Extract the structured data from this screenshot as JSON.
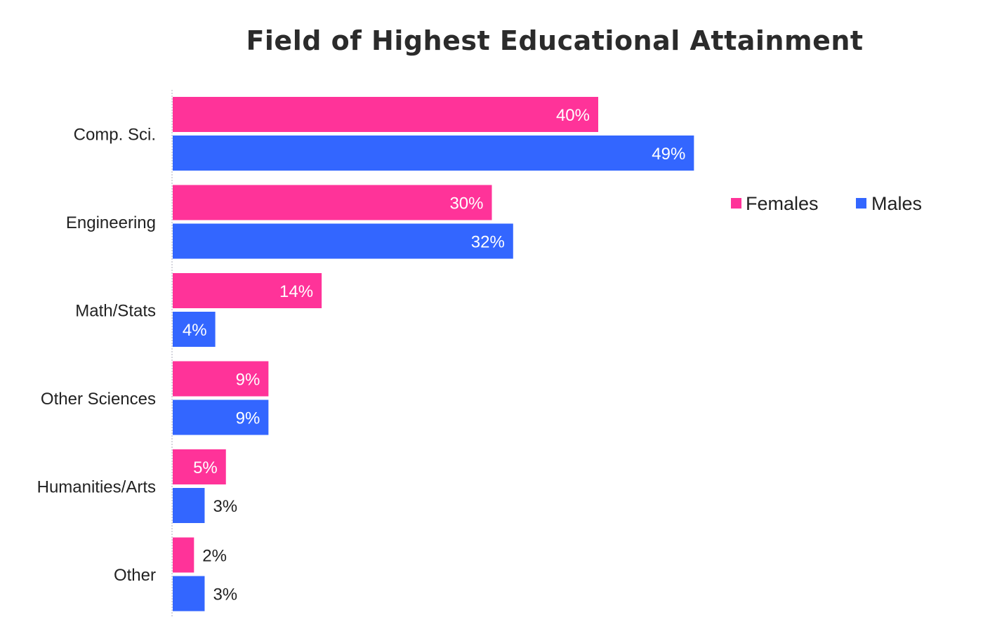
{
  "chart_data": {
    "type": "bar",
    "orientation": "horizontal",
    "title": "Field of Highest Educational Attainment",
    "categories": [
      "Comp. Sci.",
      "Engineering",
      "Math/Stats",
      "Other Sciences",
      "Humanities/Arts",
      "Other"
    ],
    "series": [
      {
        "name": "Females",
        "color": "#ff3399",
        "values": [
          40,
          30,
          14,
          9,
          5,
          2
        ],
        "labels": [
          "40%",
          "30%",
          "14%",
          "9%",
          "5%",
          "2%"
        ]
      },
      {
        "name": "Males",
        "color": "#3366ff",
        "values": [
          49,
          32,
          4,
          9,
          3,
          3
        ],
        "labels": [
          "49%",
          "32%",
          "4%",
          "9%",
          "3%",
          "3%"
        ]
      }
    ],
    "value_unit": "%",
    "xlim": [
      0,
      50
    ],
    "grid": false,
    "legend_position": "right"
  }
}
